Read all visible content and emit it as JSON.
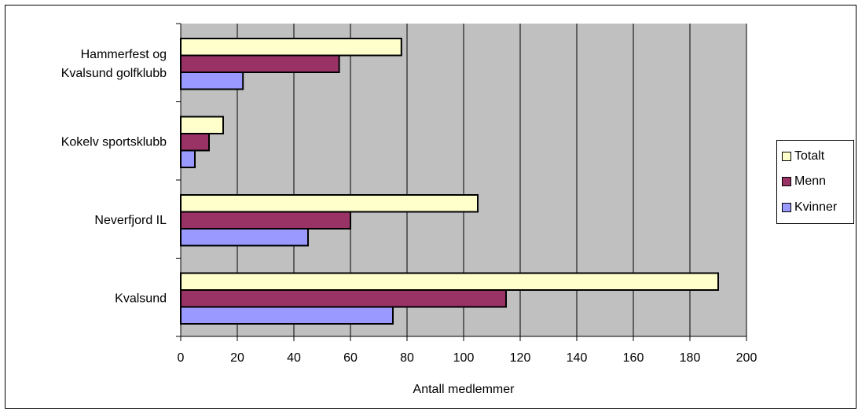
{
  "chart_data": {
    "type": "bar",
    "orientation": "horizontal",
    "categories": [
      "Hammerfest og Kvalsund golfklubb",
      "Kokelv sportsklubb",
      "Neverfjord IL",
      "Kvalsund"
    ],
    "category_lines": [
      [
        "Hammerfest og",
        "Kvalsund golfklubb"
      ],
      [
        "Kokelv sportsklubb"
      ],
      [
        "Neverfjord IL"
      ],
      [
        "Kvalsund"
      ]
    ],
    "series": [
      {
        "name": "Totalt",
        "values": [
          78,
          15,
          105,
          190
        ],
        "color": "#ffffcc"
      },
      {
        "name": "Menn",
        "values": [
          56,
          10,
          60,
          115
        ],
        "color": "#993366"
      },
      {
        "name": "Kvinner",
        "values": [
          22,
          5,
          45,
          75
        ],
        "color": "#9999ff"
      }
    ],
    "xlabel": "Antall medlemmer",
    "ylabel": "",
    "title": "",
    "xlim": [
      0,
      200
    ],
    "xticks": [
      0,
      20,
      40,
      60,
      80,
      100,
      120,
      140,
      160,
      180,
      200
    ],
    "grid": true,
    "plot_background": "#c0c0c0",
    "legend_position": "right"
  }
}
